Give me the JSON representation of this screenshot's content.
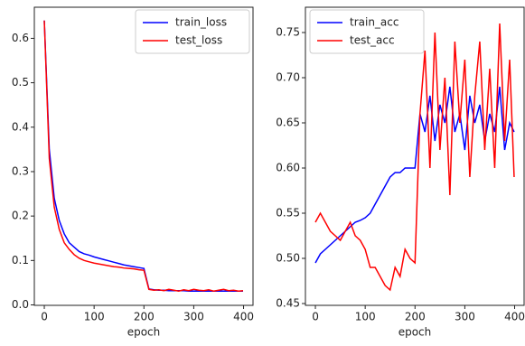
{
  "chart_data": [
    {
      "type": "line",
      "xlabel": "epoch",
      "legend": "upper right",
      "x": [
        0,
        10,
        20,
        30,
        40,
        50,
        60,
        70,
        80,
        90,
        100,
        110,
        120,
        130,
        140,
        150,
        160,
        170,
        180,
        190,
        200,
        210,
        220,
        230,
        240,
        250,
        260,
        270,
        280,
        290,
        300,
        310,
        320,
        330,
        340,
        350,
        360,
        370,
        380,
        390,
        399
      ],
      "xlim": [
        -20,
        419
      ],
      "ylim": [
        -0.001,
        0.67
      ],
      "xticks": [
        0,
        100,
        200,
        300,
        400
      ],
      "yticks": [
        {
          "value": 0,
          "label": "0.0"
        },
        0.1,
        0.2,
        0.3,
        0.4,
        0.5,
        0.6
      ],
      "series": [
        {
          "name": "train_loss",
          "color": "#0000ff",
          "values": [
            0.64,
            0.35,
            0.24,
            0.19,
            0.16,
            0.14,
            0.13,
            0.12,
            0.115,
            0.112,
            0.108,
            0.105,
            0.102,
            0.099,
            0.096,
            0.093,
            0.09,
            0.088,
            0.086,
            0.084,
            0.082,
            0.036,
            0.034,
            0.033,
            0.033,
            0.032,
            0.032,
            0.032,
            0.032,
            0.031,
            0.031,
            0.031,
            0.031,
            0.031,
            0.031,
            0.031,
            0.031,
            0.031,
            0.031,
            0.031,
            0.031
          ]
        },
        {
          "name": "test_loss",
          "color": "#ff0000",
          "values": [
            0.64,
            0.33,
            0.22,
            0.17,
            0.14,
            0.125,
            0.113,
            0.105,
            0.1,
            0.097,
            0.094,
            0.092,
            0.09,
            0.088,
            0.086,
            0.085,
            0.083,
            0.082,
            0.081,
            0.079,
            0.078,
            0.035,
            0.033,
            0.034,
            0.032,
            0.035,
            0.033,
            0.031,
            0.034,
            0.032,
            0.035,
            0.033,
            0.032,
            0.034,
            0.031,
            0.033,
            0.035,
            0.032,
            0.033,
            0.031,
            0.032
          ]
        }
      ]
    },
    {
      "type": "line",
      "xlabel": "epoch",
      "legend": "upper left",
      "x": [
        0,
        10,
        20,
        30,
        40,
        50,
        60,
        70,
        80,
        90,
        100,
        110,
        120,
        130,
        140,
        150,
        160,
        170,
        180,
        190,
        200,
        210,
        220,
        230,
        240,
        250,
        260,
        270,
        280,
        290,
        300,
        310,
        320,
        330,
        340,
        350,
        360,
        370,
        380,
        390,
        399
      ],
      "xlim": [
        -20,
        419
      ],
      "ylim": [
        0.448,
        0.778
      ],
      "xticks": [
        0,
        100,
        200,
        300,
        400
      ],
      "yticks": [
        0.45,
        {
          "value": 0.5,
          "label": "0.50"
        },
        0.55,
        {
          "value": 0.6,
          "label": "0.60"
        },
        0.65,
        {
          "value": 0.7,
          "label": "0.70"
        },
        0.75
      ],
      "series": [
        {
          "name": "train_acc",
          "color": "#0000ff",
          "values": [
            0.495,
            0.505,
            0.51,
            0.515,
            0.52,
            0.525,
            0.53,
            0.535,
            0.54,
            0.542,
            0.545,
            0.55,
            0.56,
            0.57,
            0.58,
            0.59,
            0.595,
            0.595,
            0.6,
            0.6,
            0.6,
            0.66,
            0.64,
            0.68,
            0.63,
            0.67,
            0.65,
            0.69,
            0.64,
            0.66,
            0.62,
            0.68,
            0.65,
            0.67,
            0.63,
            0.66,
            0.64,
            0.69,
            0.62,
            0.65,
            0.64
          ]
        },
        {
          "name": "test_acc",
          "color": "#ff0000",
          "values": [
            0.54,
            0.55,
            0.54,
            0.53,
            0.525,
            0.52,
            0.53,
            0.54,
            0.525,
            0.52,
            0.51,
            0.49,
            0.49,
            0.48,
            0.47,
            0.465,
            0.49,
            0.48,
            0.51,
            0.5,
            0.495,
            0.66,
            0.73,
            0.6,
            0.75,
            0.62,
            0.7,
            0.57,
            0.74,
            0.65,
            0.72,
            0.59,
            0.68,
            0.74,
            0.62,
            0.71,
            0.6,
            0.76,
            0.63,
            0.72,
            0.59
          ]
        }
      ]
    }
  ]
}
